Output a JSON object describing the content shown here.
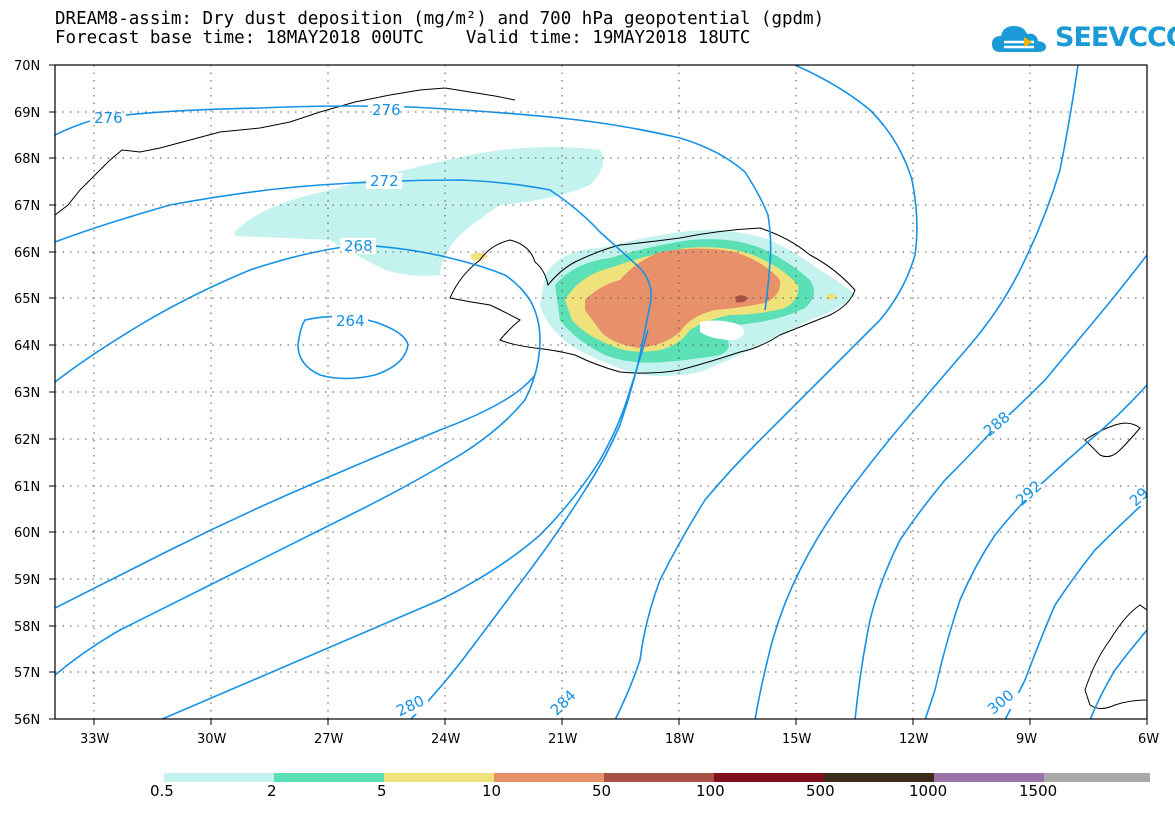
{
  "title": {
    "line1": "DREAM8-assim: Dry dust deposition (mg/m²) and 700 hPa geopotential (gpdm)",
    "line2": "Forecast base time: 18MAY2018 00UTC    Valid time: 19MAY2018 18UTC"
  },
  "logo": {
    "text": "SEEVCCC",
    "icon": "cloud-icon",
    "color": "#1a9ad6"
  },
  "map": {
    "lat_labels": [
      "70N",
      "69N",
      "68N",
      "67N",
      "66N",
      "65N",
      "64N",
      "63N",
      "62N",
      "61N",
      "60N",
      "59N",
      "58N",
      "57N",
      "56N"
    ],
    "lon_labels": [
      "33W",
      "30W",
      "27W",
      "24W",
      "21W",
      "18W",
      "15W",
      "12W",
      "9W",
      "6W"
    ],
    "contour_color": "#1592e6",
    "contour_labels": [
      "276",
      "276",
      "272",
      "268",
      "264",
      "280",
      "284",
      "288",
      "292",
      "29",
      "300"
    ]
  },
  "legend": {
    "colors": [
      "#c4f2ee",
      "#5ae0b4",
      "#f0e27a",
      "#e8906a",
      "#a65044",
      "#80101e",
      "#3c2c1c",
      "#9a72a8",
      "#a8a8a8"
    ],
    "labels": [
      "0.5",
      "2",
      "5",
      "10",
      "50",
      "100",
      "500",
      "1000",
      "1500"
    ]
  }
}
